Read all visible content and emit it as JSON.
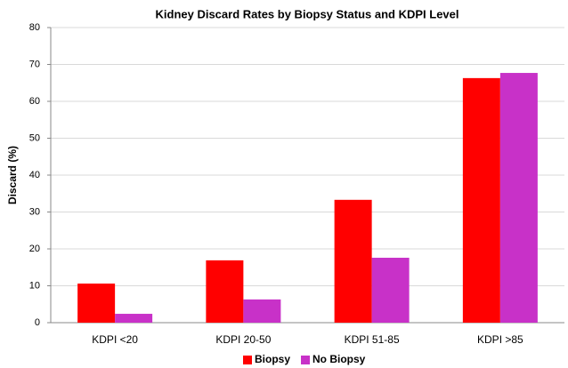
{
  "chart_data": {
    "type": "bar",
    "title": "Kidney Discard Rates by Biopsy Status and KDPI Level",
    "y_label": "Discard (%)",
    "categories": [
      "KDPI <20",
      "KDPI 20-50",
      "KDPI 51-85",
      "KDPI >85"
    ],
    "series": [
      {
        "name": "Biopsy",
        "color": "#ff0000",
        "values": [
          10.6,
          16.9,
          33.3,
          66.3
        ]
      },
      {
        "name": "No Biopsy",
        "color": "#c831c8",
        "values": [
          2.4,
          6.3,
          17.6,
          67.7
        ]
      }
    ],
    "ylim": [
      0,
      80
    ],
    "yticks": [
      0,
      10,
      20,
      30,
      40,
      50,
      60,
      70,
      80
    ],
    "grid": true,
    "legend": "bottom"
  }
}
